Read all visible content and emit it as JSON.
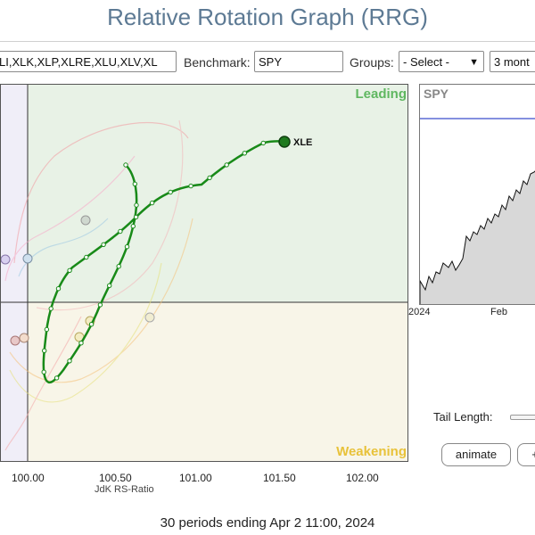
{
  "title": "Relative Rotation Graph (RRG)",
  "toolbar": {
    "symbols_value": "LI,XLK,XLP,XLRE,XLU,XLV,XL",
    "benchmark_label": "Benchmark:",
    "benchmark_value": "SPY",
    "groups_label": "Groups:",
    "groups_value": "- Select -",
    "period_value": "3 mont"
  },
  "rrg": {
    "quadrants": {
      "leading": "Leading",
      "weakening": "Weakening"
    },
    "x_ticks": [
      "100.00",
      "100.50",
      "101.00",
      "101.50",
      "102.00"
    ],
    "x_axis_label": "JdK RS-Ratio",
    "highlighted_symbol": "XLE",
    "colors": {
      "leading_bg": "#e8f2e6",
      "weakening_bg": "#f8f5e8",
      "left_bg": "#f0eef8",
      "leading_text": "#5fb760",
      "weakening_text": "#e8c23a",
      "tail": "#188a18"
    }
  },
  "price_chart": {
    "symbol": "SPY",
    "x_labels": [
      "2024",
      "Feb"
    ]
  },
  "controls": {
    "tail_length_label": "Tail Length:",
    "animate_label": "animate",
    "next_label": "+"
  },
  "footer_text": "30 periods ending Apr 2 11:00, 2024"
}
